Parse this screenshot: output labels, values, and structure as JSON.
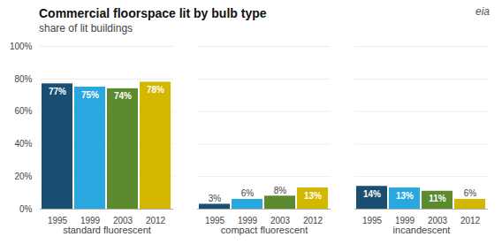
{
  "chart_data": {
    "type": "bar",
    "title": "Commercial floorspace lit by bulb type",
    "subtitle": "share of lit buildings",
    "categories": [
      "standard fluorescent",
      "compact fluorescent",
      "incandescent"
    ],
    "series": [
      {
        "name": "1995",
        "color": "#1b4f72",
        "values": [
          77,
          3,
          14
        ],
        "value_labels": [
          "77%",
          "3%",
          "14%"
        ]
      },
      {
        "name": "1999",
        "color": "#29a8e0",
        "values": [
          75,
          6,
          13
        ],
        "value_labels": [
          "75%",
          "6%",
          "13%"
        ]
      },
      {
        "name": "2003",
        "color": "#5b8b2e",
        "values": [
          74,
          8,
          11
        ],
        "value_labels": [
          "74%",
          "8%",
          "11%"
        ]
      },
      {
        "name": "2012",
        "color": "#d4b800",
        "values": [
          78,
          13,
          6
        ],
        "value_labels": [
          "78%",
          "13%",
          "6%"
        ]
      }
    ],
    "ylim": [
      0,
      100
    ],
    "yticks": [
      {
        "value": 0,
        "label": "0%"
      },
      {
        "value": 20,
        "label": "20%"
      },
      {
        "value": 40,
        "label": "40%"
      },
      {
        "value": 60,
        "label": "60%"
      },
      {
        "value": 80,
        "label": "80%"
      },
      {
        "value": 100,
        "label": "100%"
      }
    ],
    "grid": true,
    "data_labels": true,
    "annotations": [
      "eia"
    ]
  }
}
